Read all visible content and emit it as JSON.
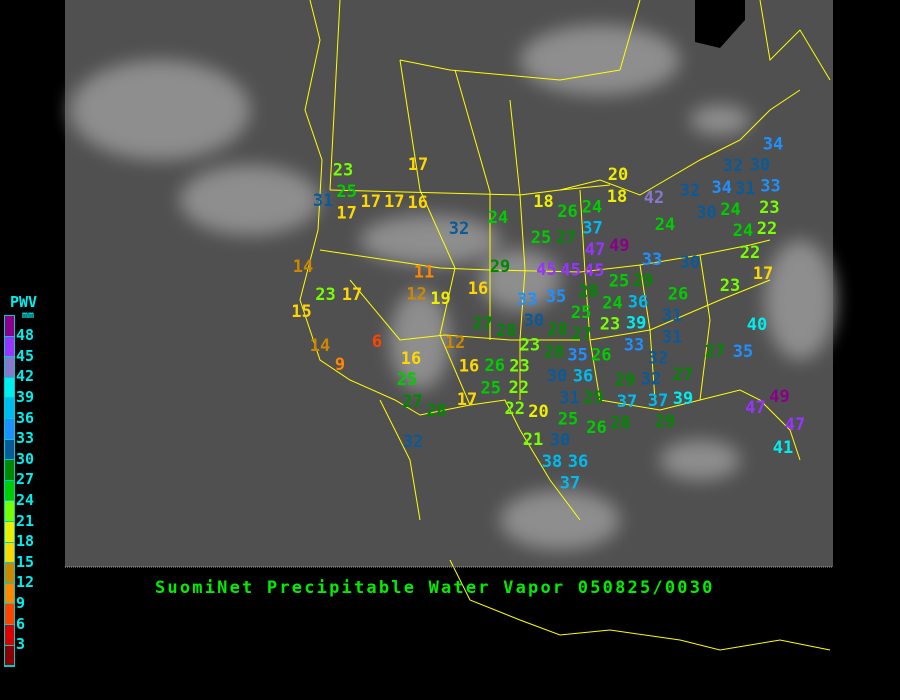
{
  "title": "SuomiNet Precipitable Water Vapor 050825/0030",
  "legend": {
    "title": "PWV",
    "unit": "mm",
    "labels": [
      "48",
      "45",
      "42",
      "39",
      "36",
      "33",
      "30",
      "27",
      "24",
      "21",
      "18",
      "15",
      "12",
      "9",
      "6",
      "3"
    ],
    "colors": [
      "#8b008b",
      "#9933ff",
      "#8877cc",
      "#00eeee",
      "#00bbee",
      "#1e90ff",
      "#0a5a9a",
      "#008800",
      "#00cc00",
      "#77ff00",
      "#eeee00",
      "#ffd700",
      "#cc8800",
      "#ff8800",
      "#ff4400",
      "#dd0000",
      "#8b0000"
    ]
  },
  "colors": {
    "border": "#ffff00",
    "title": "#00ee00",
    "legend_text": "#00eeee"
  },
  "stations": [
    23,
    25,
    31,
    17,
    17,
    17,
    16,
    17,
    32,
    24,
    14,
    23,
    17,
    11,
    12,
    19,
    16,
    15,
    14,
    9,
    6,
    12,
    16,
    16,
    25,
    27,
    28,
    17,
    29,
    27,
    28,
    20,
    18,
    26,
    24,
    18,
    42,
    32,
    34,
    31,
    33,
    34,
    32,
    30,
    30,
    24,
    23,
    22,
    25,
    27,
    37,
    49,
    47,
    24,
    24,
    22,
    17,
    45,
    45,
    45,
    33,
    30,
    29,
    25,
    26,
    23,
    33,
    35,
    28,
    24,
    36,
    25,
    23,
    39,
    31,
    30,
    28,
    27,
    40,
    33,
    31,
    32,
    23,
    28,
    35,
    26,
    30,
    36,
    27,
    35,
    26,
    23,
    27,
    25,
    22,
    32,
    31,
    29,
    29,
    37,
    37,
    39,
    49,
    47,
    22,
    20,
    28,
    29,
    25,
    26,
    47,
    21,
    30,
    41,
    38,
    36,
    37,
    32
  ]
}
